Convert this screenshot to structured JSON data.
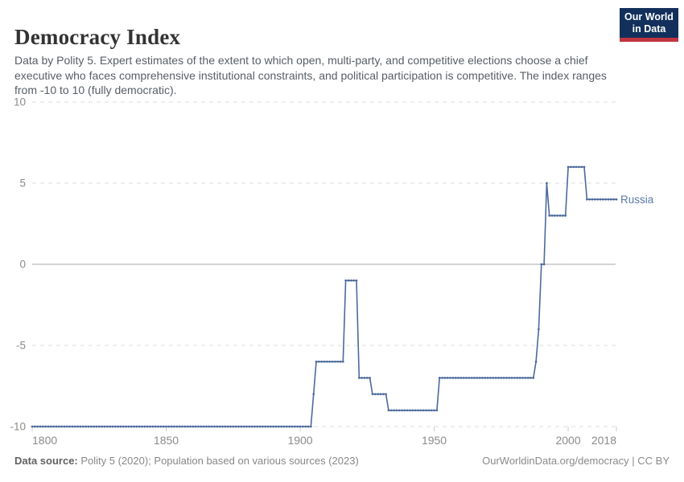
{
  "header": {
    "title": "Democracy Index",
    "subtitle": "Data by Polity 5. Expert estimates of the extent to which open, multi-party, and competitive elections choose a chief executive who faces comprehensive institutional constraints, and political participation is competitive. The index ranges from -10 to 10 (fully democratic).",
    "logo": {
      "line1": "Our World",
      "line2": "in Data"
    }
  },
  "chart_data": {
    "type": "line",
    "title": "Democracy Index",
    "xlabel": "",
    "ylabel": "",
    "xlim": [
      1800,
      2018
    ],
    "ylim": [
      -10,
      10
    ],
    "x_ticks": [
      1800,
      1850,
      1900,
      1950,
      2000,
      2018
    ],
    "y_ticks": [
      10,
      5,
      0,
      -5,
      -10
    ],
    "grid": "horizontal dashed gridlines, solid line at 0",
    "legend_position": "end-of-line label",
    "series": [
      {
        "name": "Russia",
        "runs_year_start_end_value": [
          [
            1800,
            1904,
            -10
          ],
          [
            1905,
            1905,
            -8
          ],
          [
            1906,
            1916,
            -6
          ],
          [
            1917,
            1921,
            -1
          ],
          [
            1922,
            1926,
            -7
          ],
          [
            1927,
            1932,
            -8
          ],
          [
            1933,
            1951,
            -9
          ],
          [
            1952,
            1987,
            -7
          ],
          [
            1988,
            1988,
            -6
          ],
          [
            1989,
            1989,
            -4
          ],
          [
            1990,
            1991,
            0
          ],
          [
            1992,
            1992,
            5
          ],
          [
            1993,
            1999,
            3
          ],
          [
            2000,
            2006,
            6
          ],
          [
            2007,
            2018,
            4
          ]
        ]
      }
    ]
  },
  "colors": {
    "line": "#4c6a9c",
    "entity_label": "#5b77a9",
    "gridline": "#dcdcdc",
    "zero_line": "#a8a8a8",
    "tick_mark": "#cccccc",
    "tick_label": "#8b8b8b",
    "logo_bg": "#12305b",
    "logo_stripe": "#c0353f"
  },
  "footer": {
    "source_label": "Data source:",
    "source_text": " Polity 5 (2020); Population based on various sources (2023)",
    "credit": "OurWorldinData.org/democracy | CC BY"
  }
}
